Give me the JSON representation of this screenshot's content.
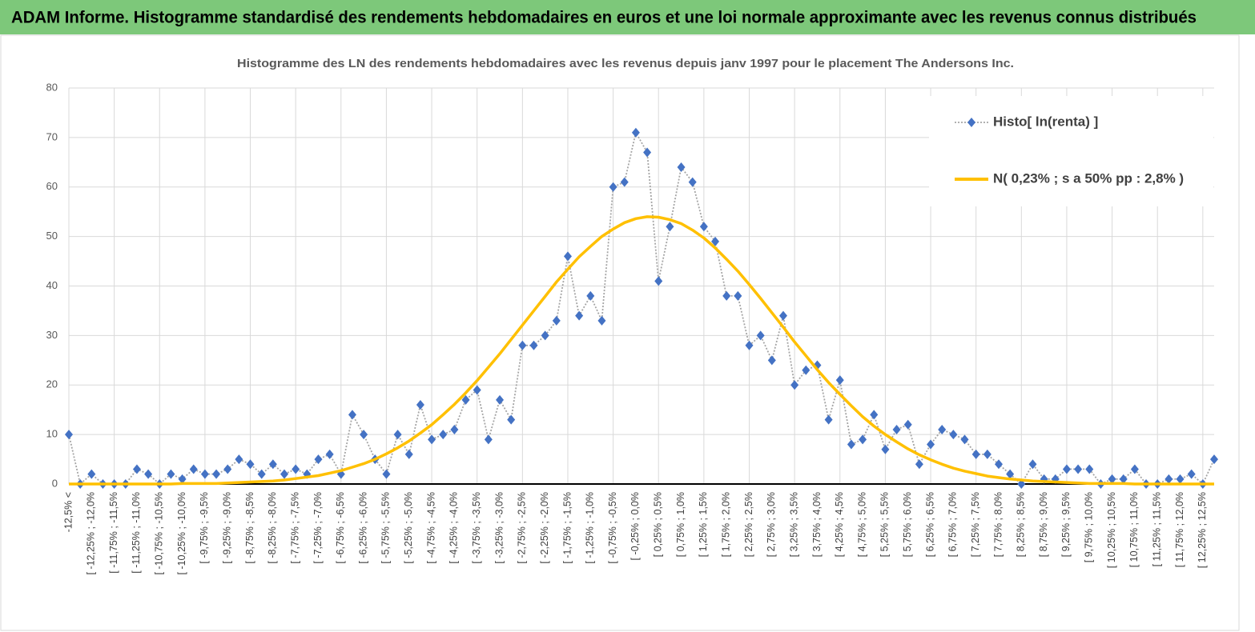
{
  "header": {
    "title": "ADAM Informe. Histogramme standardisé des rendements hebdomadaires en euros et une loi normale approximante avec les revenus connus distribués"
  },
  "chart_data": {
    "type": "line",
    "title": "Histogramme  des LN des rendements hebdomadaires avec les revenus depuis janv 1997 pour le placement The Andersons Inc.",
    "categories": [
      "-12,5% <",
      null,
      "[ -12,25% ; -12,0%",
      null,
      "[ -11,75% ; -11,5%",
      null,
      "[ -11,25% ; -11,0%",
      null,
      "[ -10,75% ; -10,5%",
      null,
      "[ -10,25% ; -10,0%",
      null,
      "[ -9,75% ; -9,5%",
      null,
      "[ -9,25% ; -9,0%",
      null,
      "[ -8,75% ; -8,5%",
      null,
      "[ -8,25% ; -8,0%",
      null,
      "[ -7,75% ; -7,5%",
      null,
      "[ -7,25% ; -7,0%",
      null,
      "[ -6,75% ; -6,5%",
      null,
      "[ -6,25% ; -6,0%",
      null,
      "[ -5,75% ; -5,5%",
      null,
      "[ -5,25% ; -5,0%",
      null,
      "[ -4,75% ; -4,5%",
      null,
      "[ -4,25% ; -4,0%",
      null,
      "[ -3,75% ; -3,5%",
      null,
      "[ -3,25% ; -3,0%",
      null,
      "[ -2,75% ; -2,5%",
      null,
      "[ -2,25% ; -2,0%",
      null,
      "[ -1,75% ; -1,5%",
      null,
      "[ -1,25% ; -1,0%",
      null,
      "[ -0,75% ; -0,5%",
      null,
      "[ -0,25% ; 0,0%",
      null,
      "[ 0,25% ; 0,5%",
      null,
      "[ 0,75% ; 1,0%",
      null,
      "[ 1,25% ; 1,5%",
      null,
      "[ 1,75% ; 2,0%",
      null,
      "[ 2,25% ; 2,5%",
      null,
      "[ 2,75% ; 3,0%",
      null,
      "[ 3,25% ; 3,5%",
      null,
      "[ 3,75% ; 4,0%",
      null,
      "[ 4,25% ; 4,5%",
      null,
      "[ 4,75% ; 5,0%",
      null,
      "[ 5,25% ; 5,5%",
      null,
      "[ 5,75% ; 6,0%",
      null,
      "[ 6,25% ; 6,5%",
      null,
      "[ 6,75% ; 7,0%",
      null,
      "[ 7,25% ; 7,5%",
      null,
      "[ 7,75% ; 8,0%",
      null,
      "[ 8,25% ; 8,5%",
      null,
      "[ 8,75% ; 9,0%",
      null,
      "[ 9,25% ; 9,5%",
      null,
      "[ 9,75% ; 10,0%",
      null,
      "[ 10,25% ; 10,5%",
      null,
      "[ 10,75% ; 11,0%",
      null,
      "[ 11,25% ; 11,5%",
      null,
      "[ 11,75% ; 12,0%",
      null,
      "[ 12,25% ; 12,5%",
      null
    ],
    "series": [
      {
        "name": "Histo[ ln(renta) ]",
        "color": "#4472c4",
        "line_color": "#a5a5a5",
        "marker": "diamond",
        "linestyle": "dotted",
        "values": [
          10,
          0,
          2,
          0,
          0,
          0,
          3,
          2,
          0,
          2,
          1,
          3,
          2,
          2,
          3,
          5,
          4,
          2,
          4,
          2,
          3,
          2,
          5,
          6,
          2,
          14,
          10,
          5,
          2,
          10,
          6,
          16,
          9,
          10,
          11,
          17,
          19,
          9,
          17,
          13,
          28,
          28,
          30,
          33,
          46,
          34,
          38,
          33,
          60,
          61,
          71,
          67,
          41,
          52,
          64,
          61,
          52,
          49,
          38,
          38,
          28,
          30,
          25,
          34,
          20,
          23,
          24,
          13,
          21,
          8,
          9,
          14,
          7,
          11,
          12,
          4,
          8,
          11,
          10,
          9,
          6,
          6,
          4,
          2,
          0,
          4,
          1,
          1,
          3,
          3,
          3,
          0,
          1,
          1,
          3,
          0,
          0,
          1,
          1,
          2,
          0,
          5
        ]
      },
      {
        "name": "N( 0,23% ; s a 50% pp : 2,8% )",
        "color": "#ffc000",
        "linestyle": "solid",
        "values": [
          0,
          0,
          0,
          0,
          0,
          0,
          0,
          0,
          0,
          0,
          0.1,
          0.1,
          0.1,
          0.1,
          0.2,
          0.3,
          0.4,
          0.5,
          0.6,
          0.8,
          1.1,
          1.4,
          1.7,
          2.2,
          2.7,
          3.4,
          4.1,
          5.0,
          6.1,
          7.3,
          8.7,
          10.3,
          12.0,
          14.0,
          16.1,
          18.4,
          20.9,
          23.6,
          26.3,
          29.2,
          32.1,
          35.0,
          37.9,
          40.8,
          43.4,
          45.9,
          48.0,
          50.0,
          51.5,
          52.8,
          53.6,
          54.0,
          53.9,
          53.4,
          52.6,
          51.3,
          49.7,
          47.7,
          45.4,
          43.0,
          40.3,
          37.5,
          34.6,
          31.7,
          28.7,
          25.9,
          23.1,
          20.5,
          18.1,
          15.8,
          13.6,
          11.7,
          10.0,
          8.5,
          7.1,
          5.9,
          4.9,
          4.0,
          3.2,
          2.6,
          2.1,
          1.6,
          1.3,
          1.0,
          0.8,
          0.6,
          0.5,
          0.4,
          0.3,
          0.2,
          0.1,
          0.1,
          0.1,
          0.1,
          0,
          0,
          0,
          0,
          0,
          0,
          0,
          0
        ]
      }
    ],
    "ylim": [
      0,
      80
    ],
    "yticks": [
      0,
      10,
      20,
      30,
      40,
      50,
      60,
      70,
      80
    ],
    "grid": true,
    "legend": "upper right"
  }
}
